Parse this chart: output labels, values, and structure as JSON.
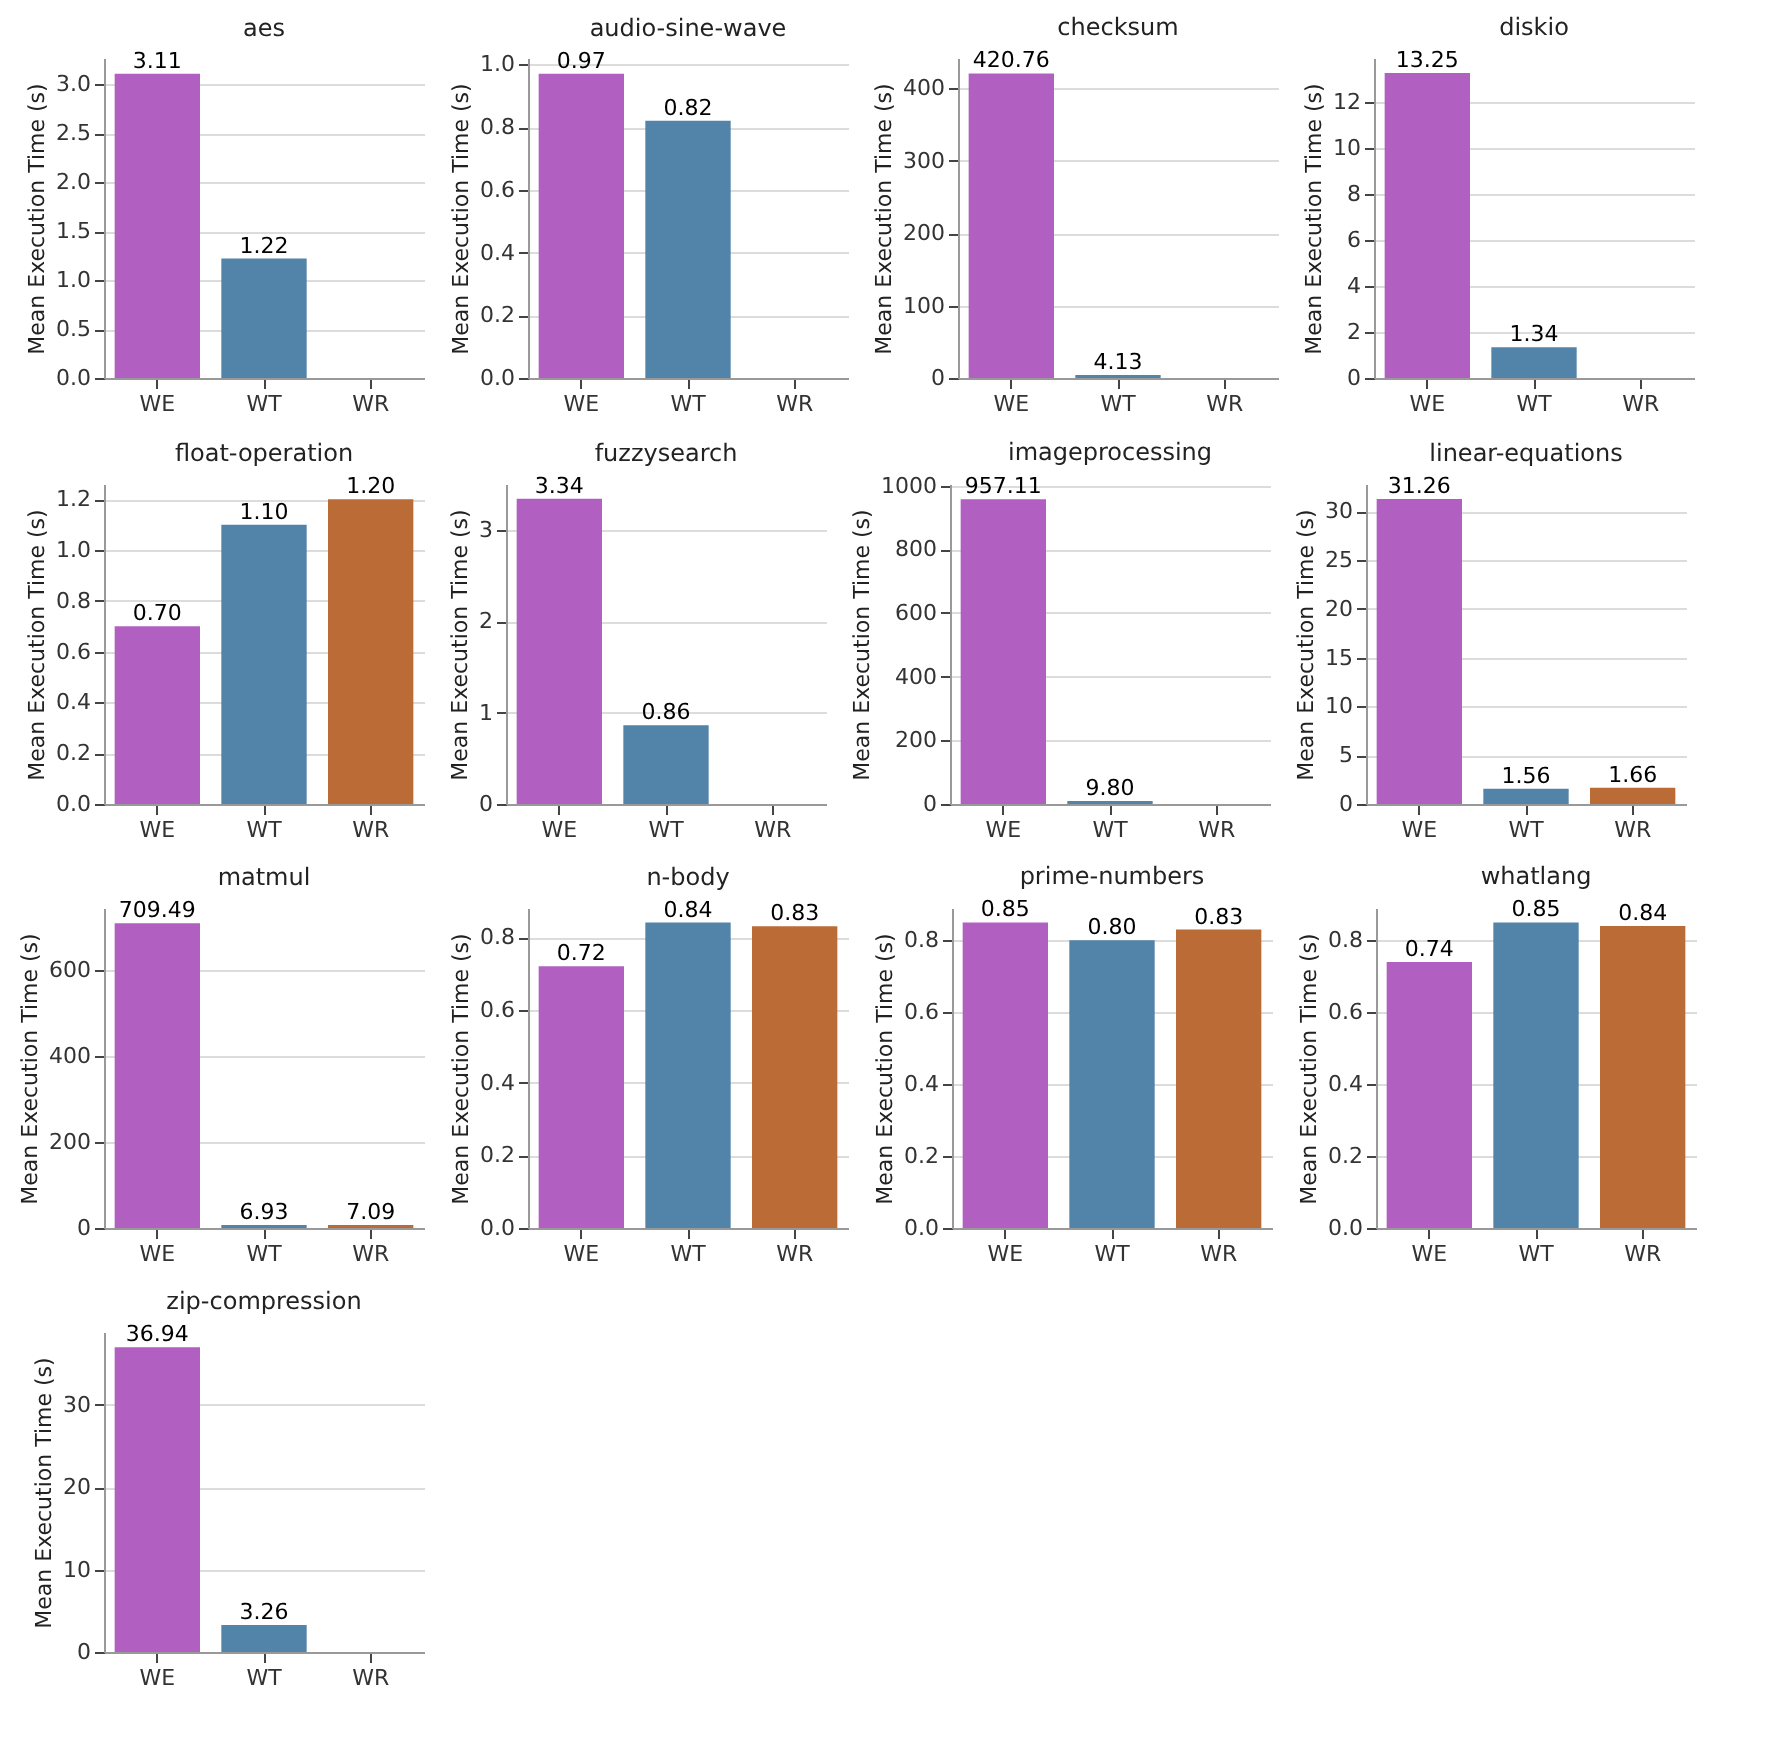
{
  "chart_data": [
    {
      "type": "bar",
      "title": "aes",
      "ylabel": "Mean Execution Time (s)",
      "categories": [
        "WE",
        "WT",
        "WR"
      ],
      "values": [
        3.11,
        1.22,
        null
      ],
      "value_labels": [
        "3.11",
        "1.22",
        null
      ],
      "colors": [
        "#b160c2",
        "#5283a8",
        "#bb6b35"
      ],
      "ylim": [
        0,
        3.27
      ],
      "yticks": [
        {
          "value": 0,
          "label": "0.0"
        },
        0.5,
        {
          "value": 1,
          "label": "1.0"
        },
        1.5,
        {
          "value": 2,
          "label": "2.0"
        },
        2.5,
        {
          "value": 3,
          "label": "3.0"
        }
      ],
      "grid": "y"
    },
    {
      "type": "bar",
      "title": "audio-sine-wave",
      "ylabel": "Mean Execution Time (s)",
      "categories": [
        "WE",
        "WT",
        "WR"
      ],
      "values": [
        0.97,
        0.82,
        null
      ],
      "value_labels": [
        "0.97",
        "0.82",
        null
      ],
      "colors": [
        "#b160c2",
        "#5283a8",
        "#bb6b35"
      ],
      "ylim": [
        0,
        1.02
      ],
      "yticks": [
        {
          "value": 0,
          "label": "0.0"
        },
        0.2,
        0.4,
        0.6,
        0.8,
        {
          "value": 1,
          "label": "1.0"
        }
      ],
      "grid": "y"
    },
    {
      "type": "bar",
      "title": "checksum",
      "ylabel": "Mean Execution Time (s)",
      "categories": [
        "WE",
        "WT",
        "WR"
      ],
      "values": [
        420.76,
        4.13,
        null
      ],
      "value_labels": [
        "420.76",
        "4.13",
        null
      ],
      "colors": [
        "#b160c2",
        "#5283a8",
        "#bb6b35"
      ],
      "ylim": [
        0,
        442
      ],
      "yticks": [
        0,
        100,
        200,
        300,
        400
      ],
      "grid": "y"
    },
    {
      "type": "bar",
      "title": "diskio",
      "ylabel": "Mean Execution Time (s)",
      "categories": [
        "WE",
        "WT",
        "WR"
      ],
      "values": [
        13.25,
        1.34,
        null
      ],
      "value_labels": [
        "13.25",
        "1.34",
        null
      ],
      "colors": [
        "#b160c2",
        "#5283a8",
        "#bb6b35"
      ],
      "ylim": [
        0,
        13.9
      ],
      "yticks": [
        0,
        2,
        4,
        6,
        8,
        10,
        12
      ],
      "grid": "y"
    },
    {
      "type": "bar",
      "title": "float-operation",
      "ylabel": "Mean Execution Time (s)",
      "categories": [
        "WE",
        "WT",
        "WR"
      ],
      "values": [
        0.7,
        1.1,
        1.2
      ],
      "value_labels": [
        "0.70",
        "1.10",
        "1.20"
      ],
      "colors": [
        "#b160c2",
        "#5283a8",
        "#bb6b35"
      ],
      "ylim": [
        0,
        1.26
      ],
      "yticks": [
        {
          "value": 0,
          "label": "0.0"
        },
        0.2,
        0.4,
        0.6,
        0.8,
        {
          "value": 1,
          "label": "1.0"
        },
        1.2
      ],
      "grid": "y"
    },
    {
      "type": "bar",
      "title": "fuzzysearch",
      "ylabel": "Mean Execution Time (s)",
      "categories": [
        "WE",
        "WT",
        "WR"
      ],
      "values": [
        3.34,
        0.86,
        null
      ],
      "value_labels": [
        "3.34",
        "0.86",
        null
      ],
      "colors": [
        "#b160c2",
        "#5283a8",
        "#bb6b35"
      ],
      "ylim": [
        0,
        3.5
      ],
      "yticks": [
        0,
        1,
        2,
        3
      ],
      "grid": "y"
    },
    {
      "type": "bar",
      "title": "imageprocessing",
      "ylabel": "Mean Execution Time (s)",
      "categories": [
        "WE",
        "WT",
        "WR"
      ],
      "values": [
        957.11,
        9.8,
        null
      ],
      "value_labels": [
        "957.11",
        "9.80",
        null
      ],
      "colors": [
        "#b160c2",
        "#5283a8",
        "#bb6b35"
      ],
      "ylim": [
        0,
        1005
      ],
      "yticks": [
        0,
        200,
        400,
        600,
        800,
        1000
      ],
      "grid": "y"
    },
    {
      "type": "bar",
      "title": "linear-equations",
      "ylabel": "Mean Execution Time (s)",
      "categories": [
        "WE",
        "WT",
        "WR"
      ],
      "values": [
        31.26,
        1.56,
        1.66
      ],
      "value_labels": [
        "31.26",
        "1.56",
        "1.66"
      ],
      "colors": [
        "#b160c2",
        "#5283a8",
        "#bb6b35"
      ],
      "ylim": [
        0,
        32.8
      ],
      "yticks": [
        0,
        5,
        10,
        15,
        20,
        25,
        30
      ],
      "grid": "y"
    },
    {
      "type": "bar",
      "title": "matmul",
      "ylabel": "Mean Execution Time (s)",
      "categories": [
        "WE",
        "WT",
        "WR"
      ],
      "values": [
        709.49,
        6.93,
        7.09
      ],
      "value_labels": [
        "709.49",
        "6.93",
        "7.09"
      ],
      "colors": [
        "#b160c2",
        "#5283a8",
        "#bb6b35"
      ],
      "ylim": [
        0,
        745
      ],
      "yticks": [
        0,
        200,
        400,
        600
      ],
      "grid": "y"
    },
    {
      "type": "bar",
      "title": "n-body",
      "ylabel": "Mean Execution Time (s)",
      "categories": [
        "WE",
        "WT",
        "WR"
      ],
      "values": [
        0.72,
        0.84,
        0.83
      ],
      "value_labels": [
        "0.72",
        "0.84",
        "0.83"
      ],
      "colors": [
        "#b160c2",
        "#5283a8",
        "#bb6b35"
      ],
      "ylim": [
        0,
        0.88
      ],
      "yticks": [
        {
          "value": 0,
          "label": "0.0"
        },
        0.2,
        0.4,
        0.6,
        0.8
      ],
      "grid": "y"
    },
    {
      "type": "bar",
      "title": "prime-numbers",
      "ylabel": "Mean Execution Time (s)",
      "categories": [
        "WE",
        "WT",
        "WR"
      ],
      "values": [
        0.85,
        0.8,
        0.83
      ],
      "value_labels": [
        "0.85",
        "0.80",
        "0.83"
      ],
      "colors": [
        "#b160c2",
        "#5283a8",
        "#bb6b35"
      ],
      "ylim": [
        0,
        0.89
      ],
      "yticks": [
        {
          "value": 0,
          "label": "0.0"
        },
        0.2,
        0.4,
        0.6,
        0.8
      ],
      "grid": "y"
    },
    {
      "type": "bar",
      "title": "whatlang",
      "ylabel": "Mean Execution Time (s)",
      "categories": [
        "WE",
        "WT",
        "WR"
      ],
      "values": [
        0.74,
        0.85,
        0.84
      ],
      "value_labels": [
        "0.74",
        "0.85",
        "0.84"
      ],
      "colors": [
        "#b160c2",
        "#5283a8",
        "#bb6b35"
      ],
      "ylim": [
        0,
        0.89
      ],
      "yticks": [
        {
          "value": 0,
          "label": "0.0"
        },
        0.2,
        0.4,
        0.6,
        0.8
      ],
      "grid": "y"
    },
    {
      "type": "bar",
      "title": "zip-compression",
      "ylabel": "Mean Execution Time (s)",
      "categories": [
        "WE",
        "WT",
        "WR"
      ],
      "values": [
        36.94,
        3.26,
        null
      ],
      "value_labels": [
        "36.94",
        "3.26",
        null
      ],
      "colors": [
        "#b160c2",
        "#5283a8",
        "#bb6b35"
      ],
      "ylim": [
        0,
        38.8
      ],
      "yticks": [
        0,
        10,
        20,
        30
      ],
      "grid": "y"
    }
  ]
}
